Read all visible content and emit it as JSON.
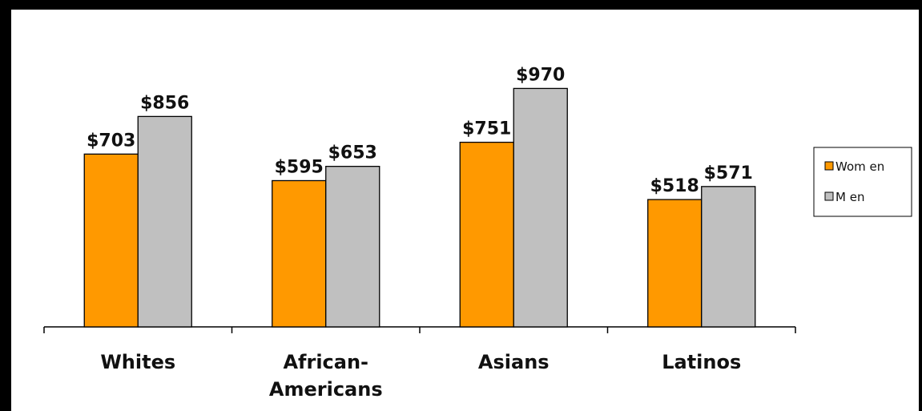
{
  "chart_data": {
    "type": "bar",
    "categories": [
      "Whites",
      "African-Americans",
      "Asians",
      "Latinos"
    ],
    "category_lines": [
      [
        "Whites"
      ],
      [
        "African-",
        "Americans"
      ],
      [
        "Asians"
      ],
      [
        "Latinos"
      ]
    ],
    "series": [
      {
        "name": "Women",
        "values": [
          703,
          595,
          751,
          518
        ],
        "labels": [
          "$703",
          "$595",
          "$751",
          "$518"
        ],
        "color": "#ff9900"
      },
      {
        "name": "Men",
        "values": [
          856,
          653,
          970,
          571
        ],
        "labels": [
          "$856",
          "$653",
          "$970",
          "$571"
        ],
        "color": "#c0c0c0"
      }
    ],
    "legend_labels": [
      "Wom en",
      "M en"
    ],
    "legend_position": "right",
    "title": "",
    "xlabel": "",
    "ylabel": "",
    "ylim": [
      0,
      1100
    ],
    "grid": false
  }
}
